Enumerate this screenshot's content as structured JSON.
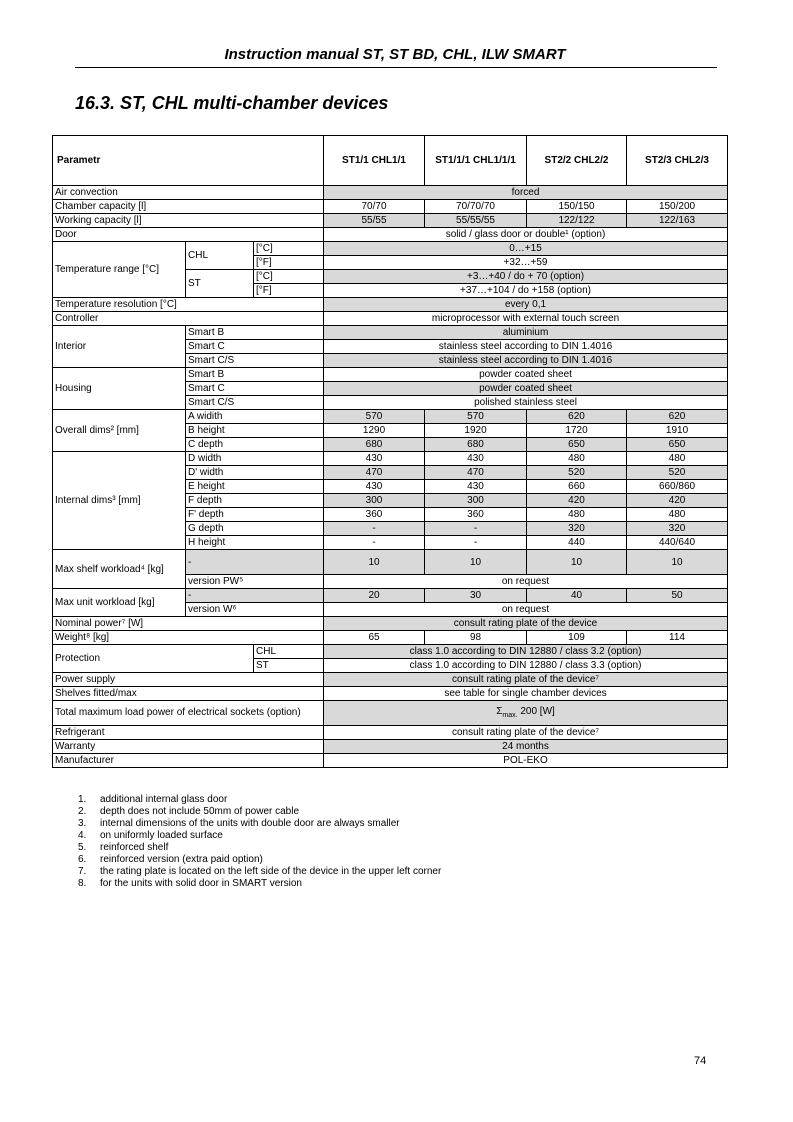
{
  "header": {
    "title": "Instruction manual ST, ST BD, CHL, ILW SMART"
  },
  "section": {
    "title": "16.3. ST, CHL multi-chamber devices"
  },
  "table": {
    "header": [
      "Parametr",
      "ST1/1 CHL1/1",
      "ST1/1/1 CHL1/1/1",
      "ST2/2 CHL2/2",
      "ST2/3 CHL2/3"
    ],
    "rows": [
      [
        {
          "t": "Air convection",
          "cs": 3
        },
        {
          "t": "forced",
          "cs": 4,
          "g": 1,
          "v": 1
        }
      ],
      [
        {
          "t": "Chamber capacity [l]",
          "cs": 3
        },
        {
          "t": "70/70",
          "v": 1
        },
        {
          "t": "70/70/70",
          "v": 1
        },
        {
          "t": "150/150",
          "v": 1
        },
        {
          "t": "150/200",
          "v": 1
        }
      ],
      [
        {
          "t": "Working capacity [l]",
          "cs": 3
        },
        {
          "t": "55/55",
          "v": 1,
          "g": 1
        },
        {
          "t": "55/55/55",
          "v": 1,
          "g": 1
        },
        {
          "t": "122/122",
          "v": 1,
          "g": 1
        },
        {
          "t": "122/163",
          "v": 1,
          "g": 1
        }
      ],
      [
        {
          "t": "Door",
          "cs": 3
        },
        {
          "t": "solid / glass door or double¹ (option)",
          "cs": 4,
          "v": 1
        }
      ],
      [
        {
          "t": "Temperature range [°C]",
          "rs": 4
        },
        {
          "t": "CHL",
          "rs": 2
        },
        {
          "t": "[°C]"
        },
        {
          "t": "0…+15",
          "cs": 4,
          "v": 1,
          "g": 1
        }
      ],
      [
        {
          "t": "[°F]"
        },
        {
          "t": "+32…+59",
          "cs": 4,
          "v": 1
        }
      ],
      [
        {
          "t": "ST",
          "rs": 2
        },
        {
          "t": "[°C]"
        },
        {
          "t": "+3…+40 / do + 70 (option)",
          "cs": 4,
          "v": 1,
          "g": 1
        }
      ],
      [
        {
          "t": "[°F]"
        },
        {
          "t": "+37…+104 / do +158 (option)",
          "cs": 4,
          "v": 1
        }
      ],
      [
        {
          "t": "Temperature resolution [°C]",
          "cs": 3
        },
        {
          "t": "every 0,1",
          "cs": 4,
          "v": 1,
          "g": 1
        }
      ],
      [
        {
          "t": "Controller",
          "cs": 3
        },
        {
          "t": "microprocessor with external touch screen",
          "cs": 4,
          "v": 1
        }
      ],
      [
        {
          "t": "Interior",
          "rs": 3
        },
        {
          "t": "Smart B",
          "cs": 2
        },
        {
          "t": "aluminium",
          "cs": 4,
          "v": 1,
          "g": 1
        }
      ],
      [
        {
          "t": "Smart C",
          "cs": 2
        },
        {
          "t": "stainless steel according to DIN 1.4016",
          "cs": 4,
          "v": 1
        }
      ],
      [
        {
          "t": "Smart C/S",
          "cs": 2
        },
        {
          "t": "stainless steel according to DIN 1.4016",
          "cs": 4,
          "v": 1,
          "g": 1
        }
      ],
      [
        {
          "t": "Housing",
          "rs": 3
        },
        {
          "t": "Smart B",
          "cs": 2
        },
        {
          "t": "powder coated sheet",
          "cs": 4,
          "v": 1
        }
      ],
      [
        {
          "t": "Smart C",
          "cs": 2
        },
        {
          "t": "powder coated sheet",
          "cs": 4,
          "v": 1,
          "g": 1
        }
      ],
      [
        {
          "t": "Smart C/S",
          "cs": 2
        },
        {
          "t": "polished stainless steel",
          "cs": 4,
          "v": 1
        }
      ],
      [
        {
          "t": "Overall dims² [mm]",
          "rs": 3
        },
        {
          "t": "A widith",
          "cs": 2
        },
        {
          "t": "570",
          "v": 1,
          "g": 1
        },
        {
          "t": "570",
          "v": 1,
          "g": 1
        },
        {
          "t": "620",
          "v": 1,
          "g": 1
        },
        {
          "t": "620",
          "v": 1,
          "g": 1
        }
      ],
      [
        {
          "t": "B height",
          "cs": 2
        },
        {
          "t": "1290",
          "v": 1
        },
        {
          "t": "1920",
          "v": 1
        },
        {
          "t": "1720",
          "v": 1
        },
        {
          "t": "1910",
          "v": 1
        }
      ],
      [
        {
          "t": "C depth",
          "cs": 2
        },
        {
          "t": "680",
          "v": 1,
          "g": 1
        },
        {
          "t": "680",
          "v": 1,
          "g": 1
        },
        {
          "t": "650",
          "v": 1,
          "g": 1
        },
        {
          "t": "650",
          "v": 1,
          "g": 1
        }
      ],
      [
        {
          "t": "Internal dims³ [mm]",
          "rs": 7
        },
        {
          "t": "D width",
          "cs": 2
        },
        {
          "t": "430",
          "v": 1
        },
        {
          "t": "430",
          "v": 1
        },
        {
          "t": "480",
          "v": 1
        },
        {
          "t": "480",
          "v": 1
        }
      ],
      [
        {
          "t": "D' width",
          "cs": 2
        },
        {
          "t": "470",
          "v": 1,
          "g": 1
        },
        {
          "t": "470",
          "v": 1,
          "g": 1
        },
        {
          "t": "520",
          "v": 1,
          "g": 1
        },
        {
          "t": "520",
          "v": 1,
          "g": 1
        }
      ],
      [
        {
          "t": "E height",
          "cs": 2
        },
        {
          "t": "430",
          "v": 1
        },
        {
          "t": "430",
          "v": 1
        },
        {
          "t": "660",
          "v": 1
        },
        {
          "t": "660/860",
          "v": 1
        }
      ],
      [
        {
          "t": "F depth",
          "cs": 2
        },
        {
          "t": "300",
          "v": 1,
          "g": 1
        },
        {
          "t": "300",
          "v": 1,
          "g": 1
        },
        {
          "t": "420",
          "v": 1,
          "g": 1
        },
        {
          "t": "420",
          "v": 1,
          "g": 1
        }
      ],
      [
        {
          "t": "F' depth",
          "cs": 2
        },
        {
          "t": "360",
          "v": 1
        },
        {
          "t": "360",
          "v": 1
        },
        {
          "t": "480",
          "v": 1
        },
        {
          "t": "480",
          "v": 1
        }
      ],
      [
        {
          "t": "G depth",
          "cs": 2
        },
        {
          "t": "-",
          "v": 1,
          "g": 1
        },
        {
          "t": "-",
          "v": 1,
          "g": 1
        },
        {
          "t": "320",
          "v": 1,
          "g": 1
        },
        {
          "t": "320",
          "v": 1,
          "g": 1
        }
      ],
      [
        {
          "t": "H height",
          "cs": 2
        },
        {
          "t": "-",
          "v": 1
        },
        {
          "t": "-",
          "v": 1
        },
        {
          "t": "440",
          "v": 1
        },
        {
          "t": "440/640",
          "v": 1
        }
      ],
      [
        {
          "t": "Max shelf workload⁴ [kg]",
          "rs": 2
        },
        {
          "t": "-",
          "cs": 2,
          "g": 1,
          "tall": 1
        },
        {
          "t": "10",
          "v": 1,
          "g": 1,
          "tall": 1
        },
        {
          "t": "10",
          "v": 1,
          "g": 1,
          "tall": 1
        },
        {
          "t": "10",
          "v": 1,
          "g": 1,
          "tall": 1
        },
        {
          "t": "10",
          "v": 1,
          "g": 1,
          "tall": 1
        }
      ],
      [
        {
          "t": "version PW⁵",
          "cs": 2
        },
        {
          "t": "on request",
          "cs": 4,
          "v": 1
        }
      ],
      [
        {
          "t": "Max unit workload [kg]",
          "rs": 2
        },
        {
          "t": "-",
          "cs": 2,
          "g": 1
        },
        {
          "t": "20",
          "v": 1,
          "g": 1
        },
        {
          "t": "30",
          "v": 1,
          "g": 1
        },
        {
          "t": "40",
          "v": 1,
          "g": 1
        },
        {
          "t": "50",
          "v": 1,
          "g": 1
        }
      ],
      [
        {
          "t": "version W⁶",
          "cs": 2
        },
        {
          "t": "on request",
          "cs": 4,
          "v": 1
        }
      ],
      [
        {
          "t": "Nominal power⁷ [W]",
          "cs": 3
        },
        {
          "t": "consult rating plate of the device",
          "cs": 4,
          "v": 1,
          "g": 1
        }
      ],
      [
        {
          "t": "Weight⁸ [kg]",
          "cs": 3
        },
        {
          "t": "65",
          "v": 1
        },
        {
          "t": "98",
          "v": 1
        },
        {
          "t": "109",
          "v": 1
        },
        {
          "t": "114",
          "v": 1
        }
      ],
      [
        {
          "t": "Protection",
          "cs": 2,
          "rs": 2
        },
        {
          "t": "CHL"
        },
        {
          "t": "class 1.0 according to DIN 12880 / class 3.2 (option)",
          "cs": 4,
          "v": 1,
          "g": 1
        }
      ],
      [
        {
          "t": "ST"
        },
        {
          "t": "class 1.0 according to DIN 12880 / class 3.3 (option)",
          "cs": 4,
          "v": 1
        }
      ],
      [
        {
          "t": "Power supply",
          "cs": 3
        },
        {
          "t": "consult rating plate of the device⁷",
          "cs": 4,
          "v": 1,
          "g": 1
        }
      ],
      [
        {
          "t": "Shelves fitted/max",
          "cs": 3
        },
        {
          "t": "see table for single chamber devices",
          "cs": 4,
          "v": 1
        }
      ],
      [
        {
          "t": "Total maximum load power of electrical sockets (option)",
          "cs": 3,
          "tall": 1,
          "wrap": 1
        },
        {
          "t": "Σ",
          "sub": "max.",
          "after": " 200 [W]",
          "cs": 4,
          "v": 1,
          "g": 1
        }
      ],
      [
        {
          "t": "Refrigerant",
          "cs": 3
        },
        {
          "t": "consult rating plate of the device⁷",
          "cs": 4,
          "v": 1
        }
      ],
      [
        {
          "t": "Warranty",
          "cs": 3
        },
        {
          "t": "24 months",
          "cs": 4,
          "v": 1,
          "g": 1
        }
      ],
      [
        {
          "t": "Manufacturer",
          "cs": 3
        },
        {
          "t": "POL-EKO",
          "cs": 4,
          "v": 1
        }
      ]
    ]
  },
  "footnotes": [
    {
      "n": "1.",
      "t": "additional internal glass door"
    },
    {
      "n": "2.",
      "t": "depth does not include 50mm of power cable"
    },
    {
      "n": "3.",
      "t": "internal dimensions of the units with double door are always smaller"
    },
    {
      "n": "4.",
      "t": "on uniformly loaded surface"
    },
    {
      "n": "5.",
      "t": "reinforced shelf"
    },
    {
      "n": "6.",
      "t": "reinforced version (extra paid option)"
    },
    {
      "n": "7.",
      "t": "the rating plate is located on the left side of the device in the upper left corner"
    },
    {
      "n": "8.",
      "t": "for the units with solid door in SMART version"
    }
  ],
  "page_number": "74"
}
